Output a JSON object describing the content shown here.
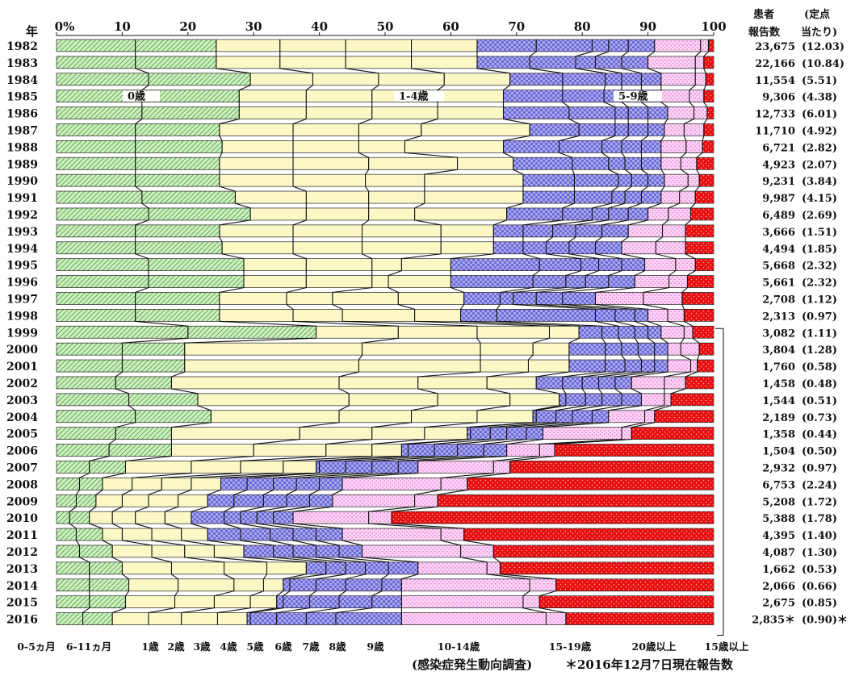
{
  "chart_data": {
    "type": "bar",
    "stacked": "100%",
    "orientation": "horizontal",
    "corner_label": "年",
    "x_axis": {
      "ticks": [
        "0%",
        "10",
        "20",
        "30",
        "40",
        "50",
        "60",
        "70",
        "80",
        "90",
        "100"
      ],
      "range": [
        0,
        100
      ]
    },
    "header": {
      "patients_line1": "患者",
      "patients_line2": "報告数",
      "per_line1": "(定点",
      "per_line2": "当たり)"
    },
    "age_groups": [
      "0-5ヵ月",
      "6-11ヵ月",
      "1歳",
      "2歳",
      "3歳",
      "4歳",
      "5歳",
      "6歳",
      "7歳",
      "8歳",
      "9歳",
      "10-14歳",
      "15-19歳",
      "20歳以上"
    ],
    "bottom_labels": [
      "0-5ヵ月",
      "6-11ヵ月",
      "1歳",
      "2歳",
      "3歳",
      "4歳",
      "5歳",
      "6歳",
      "7歳",
      "8歳",
      "9歳",
      "10-14歳",
      "15-19歳",
      "20歳以上"
    ],
    "bracket_label": "15歳以上",
    "inside_labels": [
      "0歳",
      "1-4歳",
      "5-9歳"
    ],
    "footnote_source": "(感染症発生動向調査)",
    "footnote_note": "＊2016年12月7日現在報告数",
    "colors": {
      "infant": "#cfeec2",
      "toddler": "#fbf8c6",
      "school": "#a9a8ec",
      "teen": "#f9c4f0",
      "adult": "#e81010"
    },
    "rows": [
      {
        "year": "1982",
        "reported": "23,675",
        "per_site": "(12.03)",
        "cum": [
          12,
          24.3,
          34,
          44,
          54,
          64,
          73,
          81.5,
          84,
          87,
          91,
          98,
          99.2
        ]
      },
      {
        "year": "1983",
        "reported": "22,166",
        "per_site": "(10.84)",
        "cum": [
          12,
          24.3,
          34,
          44,
          54,
          64,
          72,
          79,
          82,
          86,
          90,
          97.2,
          98.5
        ]
      },
      {
        "year": "1984",
        "reported": "11,554",
        "per_site": "(5.51)",
        "cum": [
          14,
          29.5,
          39,
          49,
          59,
          69,
          77,
          83.5,
          86,
          89,
          92,
          97.2,
          98.8
        ]
      },
      {
        "year": "1985",
        "reported": "9,306",
        "per_site": "(4.38)",
        "cum": [
          13,
          27.8,
          38,
          48,
          58,
          68,
          77,
          83.3,
          86,
          89,
          92,
          96.3,
          98.5
        ]
      },
      {
        "year": "1986",
        "reported": "12,733",
        "per_site": "(6.01)",
        "cum": [
          13,
          27.8,
          38,
          48,
          58,
          68,
          78,
          85,
          87,
          90,
          93,
          97,
          99
        ]
      },
      {
        "year": "1987",
        "reported": "11,710",
        "per_site": "(4.92)",
        "cum": [
          12,
          24.8,
          36,
          46,
          55.5,
          72,
          79.5,
          85,
          87,
          90,
          92.5,
          95.5,
          98.5
        ]
      },
      {
        "year": "1988",
        "reported": "6,721",
        "per_site": "(2.82)",
        "cum": [
          12,
          25.2,
          36,
          46,
          53,
          68,
          76.5,
          83,
          86,
          89,
          92,
          95.8,
          98.3
        ]
      },
      {
        "year": "1989",
        "reported": "4,923",
        "per_site": "(2.07)",
        "cum": [
          12,
          24.8,
          36,
          47.5,
          61,
          69.5,
          78.5,
          84,
          86.5,
          89,
          92,
          95,
          97.4
        ]
      },
      {
        "year": "1990",
        "reported": "9,231",
        "per_site": "(3.84)",
        "cum": [
          12,
          24.8,
          36,
          47,
          56,
          71,
          78.8,
          85.5,
          87.5,
          90,
          92.5,
          96.1,
          97.8
        ]
      },
      {
        "year": "1991",
        "reported": "9,987",
        "per_site": "(4.15)",
        "cum": [
          13,
          27.2,
          38,
          47.5,
          56,
          71,
          78.8,
          84.5,
          86.5,
          89,
          92,
          94.8,
          97.2
        ]
      },
      {
        "year": "1992",
        "reported": "6,489",
        "per_site": "(2.69)",
        "cum": [
          14,
          29.5,
          38,
          47.5,
          54.5,
          68.5,
          77,
          81.5,
          84,
          87,
          90,
          93.1,
          96.5
        ]
      },
      {
        "year": "1993",
        "reported": "3,666",
        "per_site": "(1.51)",
        "cum": [
          12,
          24.8,
          36,
          46.5,
          58.5,
          66.5,
          71,
          75.5,
          79,
          83,
          87,
          92.2,
          95.7
        ]
      },
      {
        "year": "1994",
        "reported": "4,494",
        "per_site": "(1.85)",
        "cum": [
          12,
          25.2,
          36,
          46.5,
          58.5,
          66.5,
          71,
          74.5,
          78,
          82,
          86,
          91.2,
          95.7
        ]
      },
      {
        "year": "1995",
        "reported": "5,668",
        "per_site": "(2.32)",
        "cum": [
          14,
          28.5,
          38,
          48,
          52.5,
          60,
          73.5,
          79.8,
          82.5,
          86,
          89.5,
          94.2,
          97.2
        ]
      },
      {
        "year": "1996",
        "reported": "5,661",
        "per_site": "(2.32)",
        "cum": [
          14,
          28.5,
          38,
          48,
          50.5,
          60,
          72.5,
          77.5,
          80.5,
          84,
          88,
          93.2,
          96
        ]
      },
      {
        "year": "1997",
        "reported": "2,708",
        "per_site": "(1.12)",
        "cum": [
          12,
          24.8,
          35,
          42,
          52,
          62,
          67.5,
          69.5,
          73,
          77,
          82,
          89.3,
          95.2
        ]
      },
      {
        "year": "1998",
        "reported": "2,313",
        "per_site": "(0.97)",
        "cum": [
          12,
          24.8,
          36,
          43.5,
          54.5,
          61.5,
          67,
          82,
          85,
          88,
          90,
          93,
          95.5
        ]
      },
      {
        "year": "1999",
        "reported": "3,082",
        "per_site": "(1.11)",
        "cum": [
          20,
          39.5,
          52,
          64,
          75,
          79.5,
          83,
          85.5,
          88,
          90,
          92,
          95.5,
          96.8
        ]
      },
      {
        "year": "2000",
        "reported": "3,804",
        "per_site": "(1.28)",
        "cum": [
          10,
          19.5,
          46.5,
          64.5,
          72.5,
          78,
          83.5,
          86,
          88.5,
          91,
          93,
          95,
          97.8
        ]
      },
      {
        "year": "2001",
        "reported": "1,760",
        "per_site": "(0.58)",
        "cum": [
          10,
          19.5,
          46,
          64.5,
          71.8,
          78,
          83.5,
          86.5,
          89,
          91,
          93,
          96.5,
          97.5
        ]
      },
      {
        "year": "2002",
        "reported": "1,458",
        "per_site": "(0.48)",
        "cum": [
          9,
          17.5,
          43,
          55,
          65.5,
          73,
          77,
          80,
          82.5,
          85,
          87.5,
          92.5,
          95.7
        ]
      },
      {
        "year": "2003",
        "reported": "1,544",
        "per_site": "(0.51)",
        "cum": [
          11,
          21.5,
          44.5,
          58,
          69,
          76.5,
          77.5,
          80.5,
          83,
          86,
          89,
          92.5,
          93.5
        ]
      },
      {
        "year": "2004",
        "reported": "2,189",
        "per_site": "(0.73)",
        "cum": [
          12,
          23.5,
          43,
          54,
          64,
          72.5,
          73,
          76,
          78.5,
          81.5,
          84,
          89.5,
          91
        ]
      },
      {
        "year": "2005",
        "reported": "1,358",
        "per_site": "(0.44)",
        "cum": [
          9,
          17.5,
          37,
          48,
          56,
          62.5,
          63,
          66,
          68.5,
          71.5,
          74,
          86,
          87.5
        ]
      },
      {
        "year": "2006",
        "reported": "1,504",
        "per_site": "(0.50)",
        "cum": [
          8,
          17.5,
          30,
          41,
          48,
          52.5,
          53.5,
          57.5,
          61,
          65,
          68.5,
          73.5,
          75.8
        ]
      },
      {
        "year": "2007",
        "reported": "2,932",
        "per_site": "(0.97)",
        "cum": [
          5,
          10.5,
          20.5,
          28,
          34.5,
          39.5,
          40,
          44,
          48,
          52,
          55,
          66.5,
          69
        ]
      },
      {
        "year": "2008",
        "reported": "6,753",
        "per_site": "(2.24)",
        "cum": [
          3.5,
          7,
          11.5,
          16,
          20.5,
          25,
          29,
          33,
          36.5,
          40,
          43.5,
          58.5,
          62.5
        ]
      },
      {
        "year": "2009",
        "reported": "5,208",
        "per_site": "(1.72)",
        "cum": [
          3,
          6,
          10,
          14,
          18.5,
          23,
          27,
          31.5,
          35,
          38.5,
          42,
          54.5,
          58
        ]
      },
      {
        "year": "2010",
        "reported": "5,388",
        "per_site": "(1.78)",
        "cum": [
          2,
          5,
          8.5,
          12,
          16.5,
          20.5,
          25.5,
          28,
          30.5,
          33,
          36,
          47.5,
          51
        ]
      },
      {
        "year": "2011",
        "reported": "4,395",
        "per_site": "(1.40)",
        "cum": [
          3,
          7,
          10,
          14.5,
          19,
          23,
          28,
          32.5,
          36,
          39.5,
          43.5,
          58.5,
          62
        ]
      },
      {
        "year": "2012",
        "reported": "4,087",
        "per_site": "(1.30)",
        "cum": [
          3.5,
          8.5,
          14.5,
          19.5,
          24,
          28.5,
          33,
          36,
          39.5,
          43,
          46.5,
          61.5,
          66.5
        ]
      },
      {
        "year": "2013",
        "reported": "1,662",
        "per_site": "(0.53)",
        "cum": [
          5,
          10,
          17.5,
          25.5,
          32,
          38,
          41,
          44,
          47,
          50.5,
          55,
          65.5,
          67.5
        ]
      },
      {
        "year": "2014",
        "reported": "2,066",
        "per_site": "(0.66)",
        "cum": [
          5,
          11,
          18.5,
          27,
          31.5,
          34.5,
          35.5,
          39.5,
          44,
          49.5,
          52.5,
          72,
          76
        ]
      },
      {
        "year": "2015",
        "reported": "2,675",
        "per_site": "(0.85)",
        "cum": [
          5,
          10.5,
          18,
          24,
          29.5,
          33.5,
          34.5,
          38.5,
          43,
          48,
          52.5,
          71,
          73.5
        ]
      },
      {
        "year": "2016",
        "reported": "2,835＊",
        "per_site": "(0.90)＊",
        "cum": [
          4,
          8.5,
          14,
          19,
          24.5,
          29,
          29.5,
          33.5,
          38,
          42.5,
          52.5,
          74.5,
          77.5
        ]
      }
    ]
  }
}
